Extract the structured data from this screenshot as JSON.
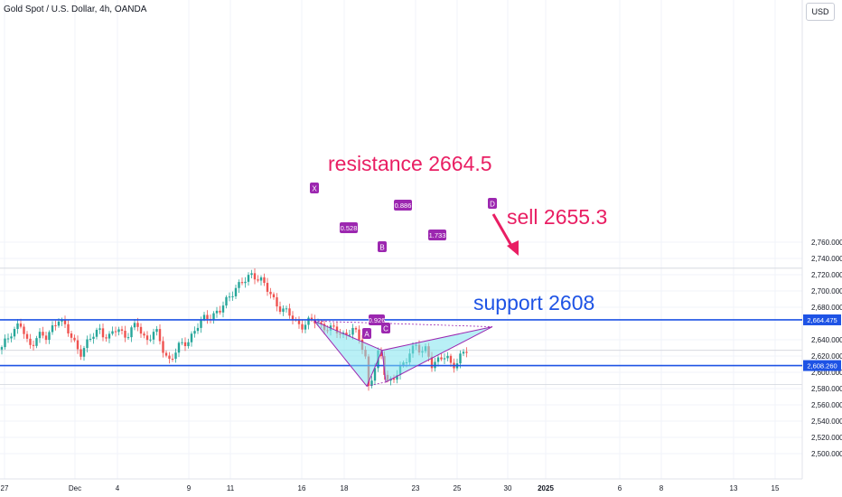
{
  "chart_title": "Gold Spot / U.S. Dollar, 4h, OANDA",
  "currency": "USD",
  "colors": {
    "up": "#26a69a",
    "down": "#ef5350",
    "level": "#1e53e5",
    "text_red": "#e91e63",
    "pattern_fill": "#7fe3ef",
    "pattern_edge": "#9c27b0",
    "grid": "#f0f3fa",
    "axis_text": "#131722"
  },
  "chart_data": {
    "type": "candlestick",
    "y_axis_labels": [
      "2,760.000",
      "2,740.000",
      "2,720.000",
      "2,700.000",
      "2,680.000",
      "2,640.000",
      "2,620.000",
      "2,600.000",
      "2,580.000",
      "2,560.000",
      "2,540.000",
      "2,520.000",
      "2,500.000"
    ],
    "x_axis_labels": [
      "27",
      "Dec",
      "4",
      "9",
      "11",
      "16",
      "18",
      "23",
      "25",
      "30",
      "2025",
      "6",
      "8",
      "13",
      "15"
    ],
    "ylim": [
      2491,
      2792
    ],
    "resistance": {
      "value": 2664.475,
      "label": "2,664.475",
      "annotation": "resistance 2664.5"
    },
    "support": {
      "value": 2608.26,
      "label": "2,608.260",
      "annotation": "support 2608"
    },
    "sell_annotation": "sell 2655.3",
    "pattern": {
      "points": [
        {
          "label": "X",
          "x": "Dec 16",
          "y": 2663
        },
        {
          "label": "A",
          "x": "Dec 20",
          "y": 2583
        },
        {
          "label": "B",
          "x": "Dec 20",
          "y": 2627
        },
        {
          "label": "C",
          "x": "Dec 20",
          "y": 2588
        },
        {
          "label": "D",
          "x": "Dec 27",
          "y": 2656
        }
      ],
      "ratios": [
        "0.528",
        "0.886",
        "0.926",
        "1.733"
      ]
    }
  }
}
